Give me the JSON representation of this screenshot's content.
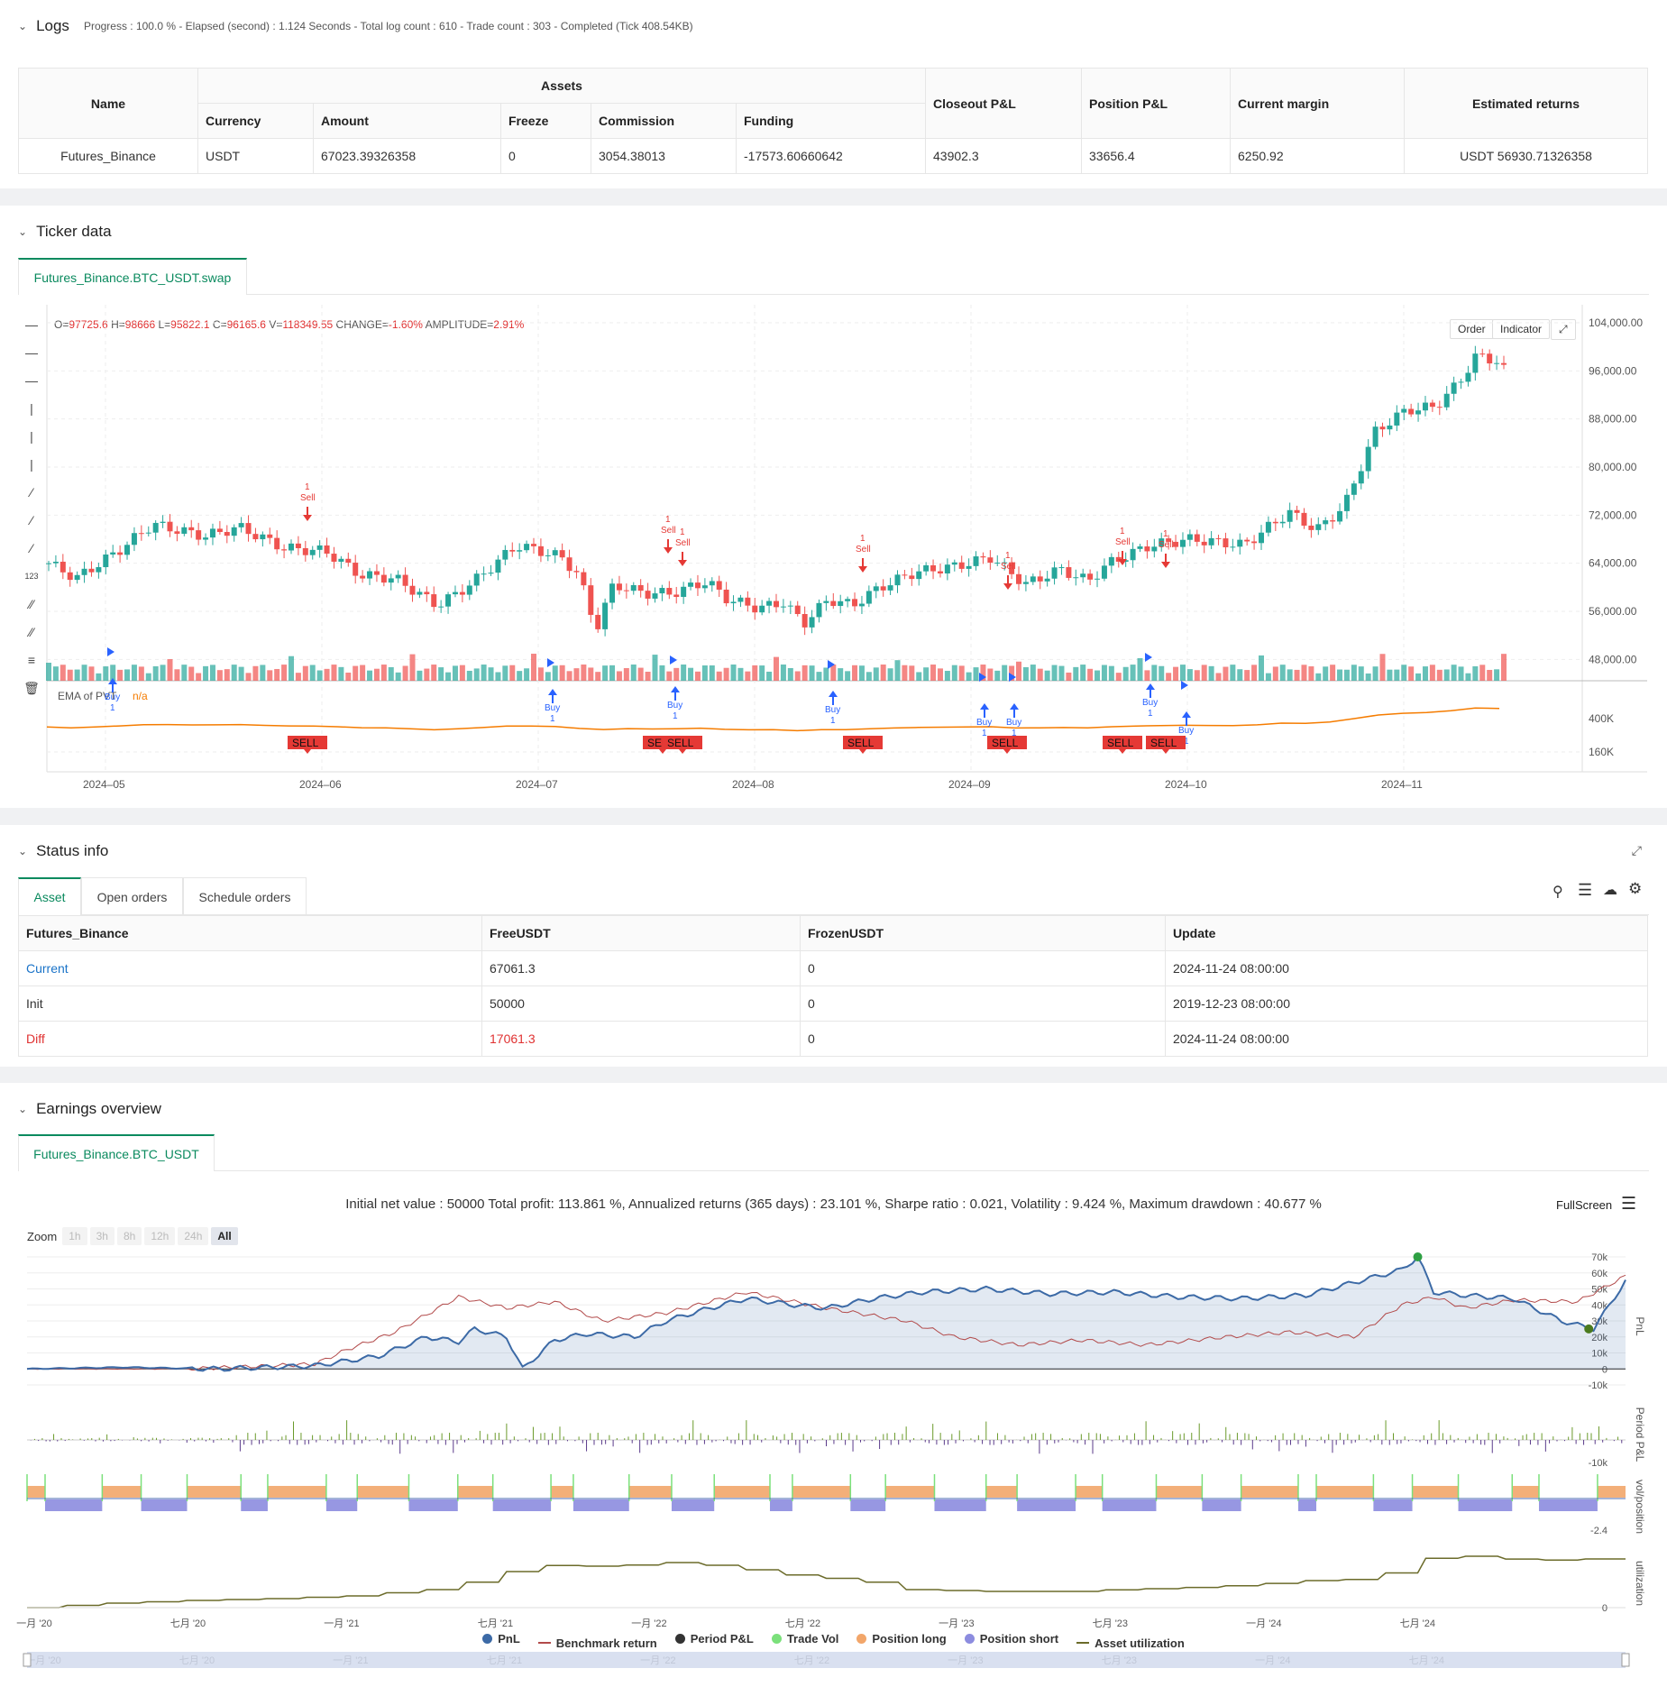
{
  "logs": {
    "title": "Logs",
    "info": "Progress : 100.0 % - Elapsed (second) : 1.124  Seconds - Total log count : 610 - Trade count : 303 - Completed (Tick 408.54KB)",
    "headers": {
      "name": "Name",
      "assets": "Assets",
      "currency": "Currency",
      "amount": "Amount",
      "freeze": "Freeze",
      "commission": "Commission",
      "funding": "Funding",
      "closeout": "Closeout P&L",
      "position": "Position P&L",
      "margin": "Current margin",
      "returns": "Estimated returns"
    },
    "row": {
      "name": "Futures_Binance",
      "currency": "USDT",
      "amount": "67023.39326358",
      "freeze": "0",
      "commission": "3054.38013",
      "funding": "-17573.60660642",
      "closeout": "43902.3",
      "position": "33656.4",
      "margin": "6250.92",
      "returns": "USDT 56930.71326358"
    }
  },
  "ticker": {
    "title": "Ticker data",
    "tab": "Futures_Binance.BTC_USDT.swap",
    "ohlc": {
      "o_label": "O=",
      "o": "97725.6",
      "h_label": "H=",
      "h": "98666",
      "l_label": "L=",
      "l": "95822.1",
      "c_label": "C=",
      "c": "96165.6",
      "v_label": "V=",
      "v": "118349.55",
      "change_label": "CHANGE=",
      "change": "-1.60%",
      "amp_label": "AMPLITUDE=",
      "amp": "2.91%"
    },
    "order_btn": "Order",
    "indicator_btn": "Indicator",
    "price_ticks": [
      "104,000.00",
      "96,000.00",
      "88,000.00",
      "80,000.00",
      "72,000.00",
      "64,000.00",
      "56,000.00",
      "48,000.00"
    ],
    "ind_ticks": [
      "400K",
      "160K"
    ],
    "date_ticks": [
      "2024–05",
      "2024–06",
      "2024–07",
      "2024–08",
      "2024–09",
      "2024–10",
      "2024–11"
    ],
    "ema_label": "EMA of PVT",
    "ema_val": "n/a",
    "buy_text": "Buy",
    "sell_text": "Sell",
    "qty": "1",
    "sell_tag": "SELL",
    "colors": {
      "up": "#26a69a",
      "down": "#ef5350",
      "buy": "#2962ff",
      "sell": "#e53935",
      "ema": "#f57c00"
    }
  },
  "status": {
    "title": "Status info",
    "tabs": [
      "Asset",
      "Open orders",
      "Schedule orders"
    ],
    "headers": [
      "Futures_Binance",
      "FreeUSDT",
      "FrozenUSDT",
      "Update"
    ],
    "rows": [
      [
        "Current",
        "67061.3",
        "0",
        "2024-11-24 08:00:00"
      ],
      [
        "Init",
        "50000",
        "0",
        "2019-12-23 08:00:00"
      ],
      [
        "Diff",
        "17061.3",
        "0",
        "2024-11-24 08:00:00"
      ]
    ]
  },
  "earnings": {
    "title": "Earnings overview",
    "tab": "Futures_Binance.BTC_USDT",
    "summary": "Initial net value : 50000 Total profit: 113.861 %, Annualized returns (365 days) : 23.101 %, Sharpe ratio : 0.021, Volatility : 9.424 %, Maximum drawdown : 40.677 %",
    "fullscreen": "FullScreen",
    "zoom_label": "Zoom",
    "zoom": [
      "1h",
      "3h",
      "8h",
      "12h",
      "24h",
      "All"
    ],
    "pnl_ticks": [
      "70k",
      "60k",
      "50k",
      "40k",
      "30k",
      "20k",
      "10k",
      "0",
      "-10k"
    ],
    "period_ticks": [
      "-10k"
    ],
    "pos_ticks": [
      "-2.4"
    ],
    "util_ticks": [
      "0"
    ],
    "axis_names": [
      "PnL",
      "Period P&L",
      "vol/position",
      "utilization"
    ],
    "date_ticks": [
      "一月 '20",
      "七月 '20",
      "一月 '21",
      "七月 '21",
      "一月 '22",
      "七月 '22",
      "一月 '23",
      "七月 '23",
      "一月 '24",
      "七月 '24"
    ],
    "legend": [
      {
        "name": "PnL",
        "color": "#3c6aa6",
        "kind": "dot"
      },
      {
        "name": "Benchmark return",
        "color": "#b24a4a",
        "kind": "line"
      },
      {
        "name": "Period P&L",
        "color": "#333333",
        "kind": "dot"
      },
      {
        "name": "Trade Vol",
        "color": "#7be07b",
        "kind": "dot"
      },
      {
        "name": "Position long",
        "color": "#f2a66a",
        "kind": "dot"
      },
      {
        "name": "Position short",
        "color": "#8c8cdf",
        "kind": "dot"
      },
      {
        "name": "Asset utilization",
        "color": "#6b6b2a",
        "kind": "line"
      }
    ]
  }
}
